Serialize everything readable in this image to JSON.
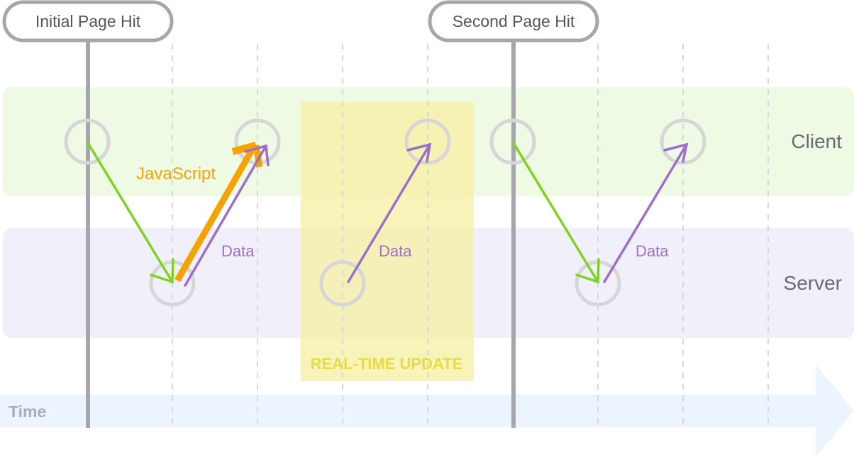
{
  "hits": [
    {
      "label": "Initial Page Hit"
    },
    {
      "label": "Second Page Hit"
    }
  ],
  "lanes": {
    "client": "Client",
    "server": "Server"
  },
  "labels": {
    "javascript": "JavaScript",
    "data_1": "Data",
    "data_2": "Data",
    "data_3": "Data",
    "realtime": "REAL-TIME UPDATE",
    "time": "Time"
  },
  "colors": {
    "client_lane": "#eefae4",
    "server_lane": "#f1f0fa",
    "realtime_box": "#f6f0a8",
    "realtime_text": "#e6dd45",
    "time_arrow": "#ecf4fd",
    "time_text": "#a9aeb8",
    "green": "#7ed321",
    "purple": "#9b6fcb",
    "orange": "#f5a300",
    "node": "#d6d6d6",
    "hit_line": "#a7a5ad",
    "guide": "#d8d8dc"
  }
}
